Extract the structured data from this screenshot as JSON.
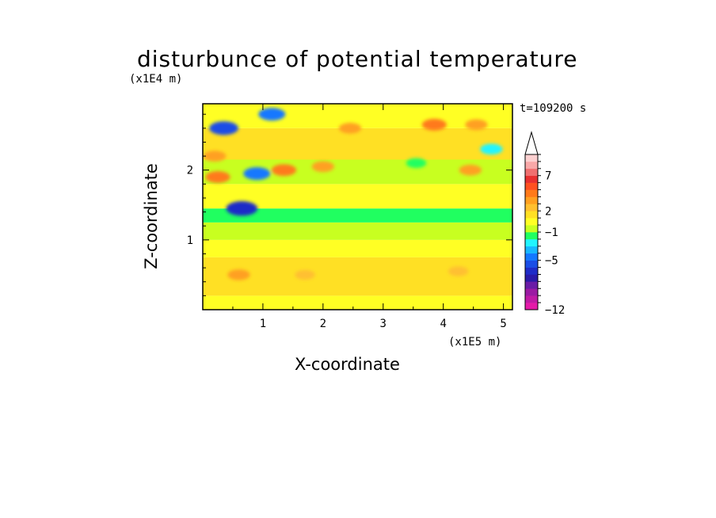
{
  "chart_data": {
    "type": "heatmap",
    "title": "disturbunce of potential temperature",
    "xlabel": "X-coordinate",
    "ylabel": "Z-coordinate",
    "x_unit": "(x1E5 m)",
    "y_unit": "(x1E4 m)",
    "time_label": "t=109200 s",
    "xlim": [
      0,
      5.15
    ],
    "ylim": [
      0,
      2.95
    ],
    "x_ticks": [
      "1",
      "2",
      "3",
      "4",
      "5"
    ],
    "y_ticks": [
      "1",
      "2"
    ],
    "colorbar": {
      "tick_labels": [
        "7",
        "2",
        "−1",
        "−5",
        "−12"
      ],
      "levels": [
        -12,
        -11,
        -10,
        -9,
        -8,
        -7,
        -6,
        -5,
        -4,
        -3,
        -2,
        -1,
        0,
        1,
        2,
        3,
        4,
        5,
        6,
        7,
        8,
        9,
        10
      ],
      "colors": [
        "#e41aa8",
        "#c01aa5",
        "#9b1aa3",
        "#6a1ca6",
        "#2a1aa8",
        "#1f2cc8",
        "#1a4ee6",
        "#1478ff",
        "#18b8ff",
        "#22f5ff",
        "#20ff60",
        "#c8ff20",
        "#ffff24",
        "#ffe024",
        "#ffc030",
        "#ffa020",
        "#ff7a1a",
        "#ff5020",
        "#e83030",
        "#f07070",
        "#f8a8a8",
        "#fcd0d0"
      ],
      "extend": "max"
    },
    "bands": [
      {
        "z": [
          0.0,
          0.2
        ],
        "value": 0.3
      },
      {
        "z": [
          0.2,
          0.75
        ],
        "value": 1.6
      },
      {
        "z": [
          0.75,
          1.0
        ],
        "value": 0.5
      },
      {
        "z": [
          1.0,
          1.25
        ],
        "value": -0.6
      },
      {
        "z": [
          1.25,
          1.45
        ],
        "value": -1.2
      },
      {
        "z": [
          1.45,
          1.8
        ],
        "value": 0.8
      },
      {
        "z": [
          1.8,
          2.15
        ],
        "value": -0.4
      },
      {
        "z": [
          2.15,
          2.6
        ],
        "value": 1.2
      },
      {
        "z": [
          2.6,
          2.95
        ],
        "value": 0.2
      }
    ],
    "features": [
      {
        "x": 0.35,
        "z": 2.6,
        "value": -6
      },
      {
        "x": 1.15,
        "z": 2.8,
        "value": -5
      },
      {
        "x": 0.9,
        "z": 1.95,
        "value": -5
      },
      {
        "x": 0.65,
        "z": 1.45,
        "value": -7
      },
      {
        "x": 1.35,
        "z": 2.0,
        "value": 4
      },
      {
        "x": 2.0,
        "z": 2.05,
        "value": 3
      },
      {
        "x": 2.45,
        "z": 2.6,
        "value": 3
      },
      {
        "x": 3.85,
        "z": 2.65,
        "value": 4
      },
      {
        "x": 4.55,
        "z": 2.65,
        "value": 3
      },
      {
        "x": 4.45,
        "z": 2.0,
        "value": 3
      },
      {
        "x": 3.55,
        "z": 2.1,
        "value": -2
      },
      {
        "x": 4.8,
        "z": 2.3,
        "value": -3
      },
      {
        "x": 0.25,
        "z": 1.9,
        "value": 4
      },
      {
        "x": 0.2,
        "z": 2.2,
        "value": 3
      },
      {
        "x": 4.25,
        "z": 0.55,
        "value": 2
      },
      {
        "x": 1.7,
        "z": 0.5,
        "value": 2
      },
      {
        "x": 0.6,
        "z": 0.5,
        "value": 3
      }
    ]
  }
}
